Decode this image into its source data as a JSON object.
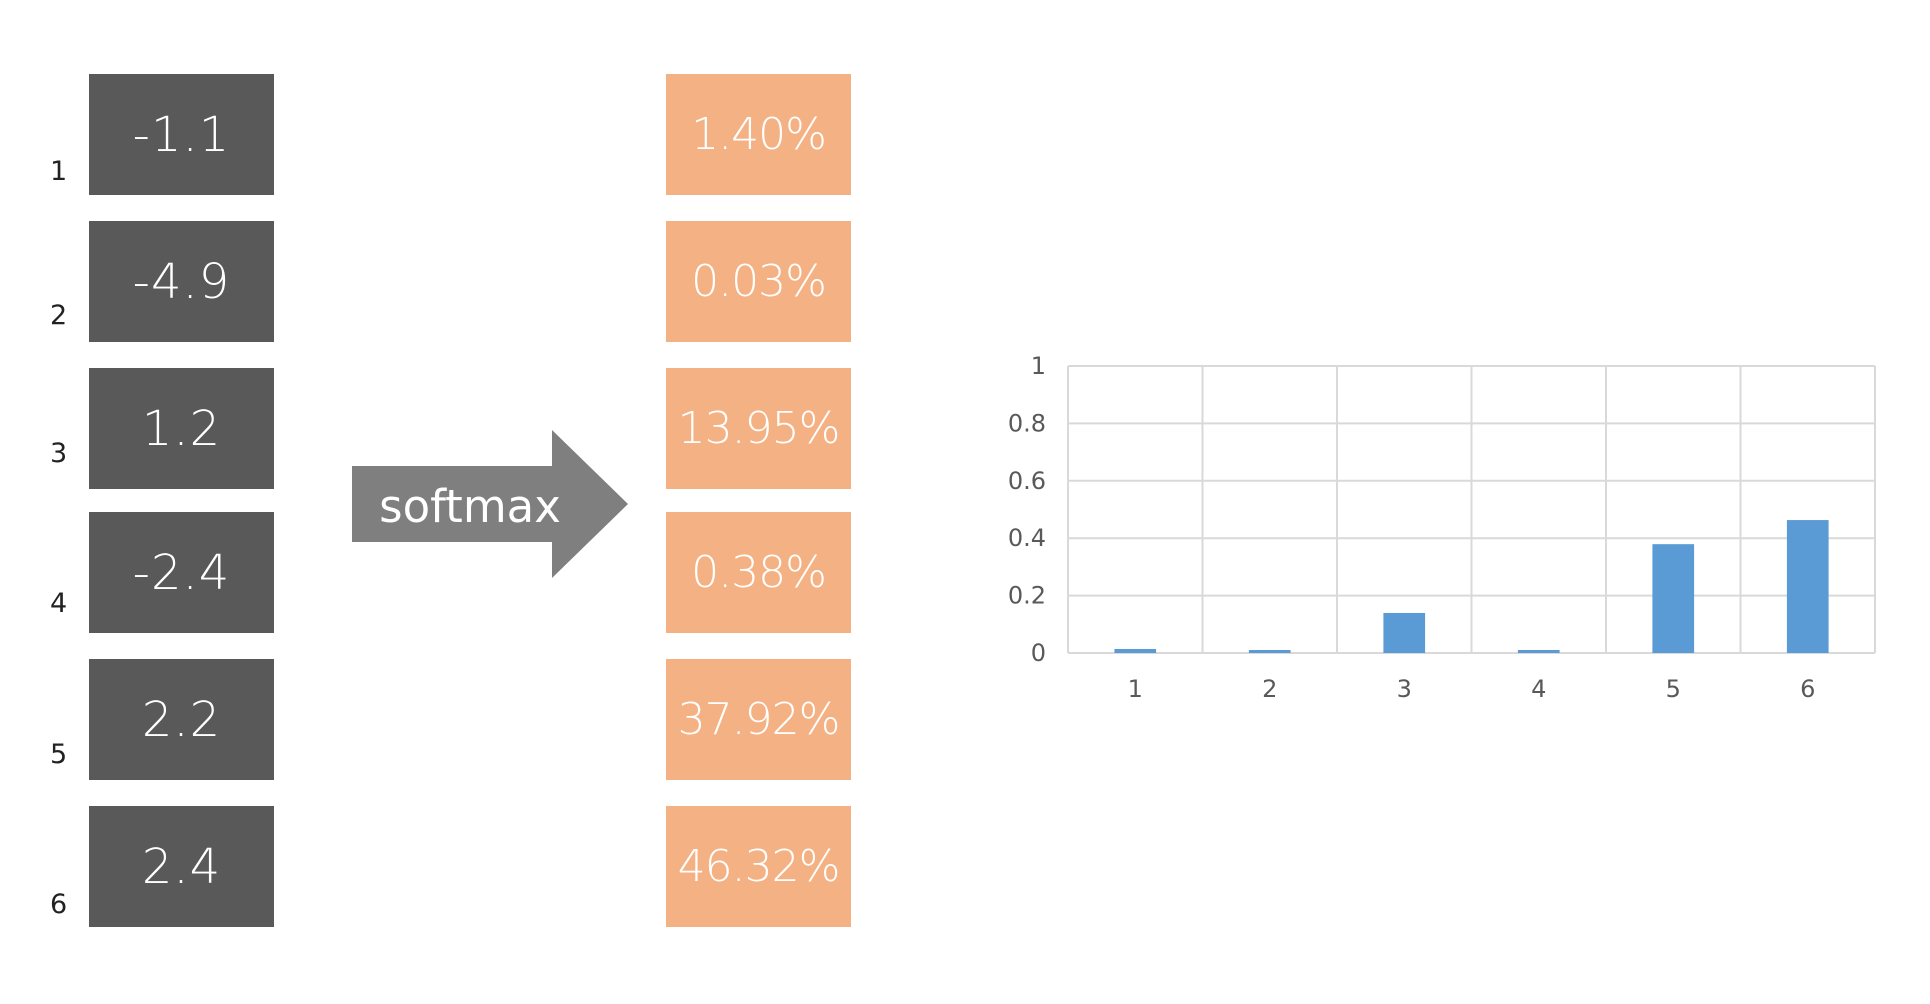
{
  "rows": [
    {
      "index": "1",
      "logit": "-1.1",
      "probability": "1.40%"
    },
    {
      "index": "2",
      "logit": "-4.9",
      "probability": "0.03%"
    },
    {
      "index": "3",
      "logit": "1.2",
      "probability": "13.95%"
    },
    {
      "index": "4",
      "logit": "-2.4",
      "probability": "0.38%"
    },
    {
      "index": "5",
      "logit": "2.2",
      "probability": "37.92%"
    },
    {
      "index": "6",
      "logit": "2.4",
      "probability": "46.32%"
    }
  ],
  "arrow": {
    "label": "softmax"
  },
  "colors": {
    "logit_box": "#595959",
    "prob_box": "#f4b183",
    "arrow": "#7f7f7f",
    "bar": "#5b9bd5",
    "grid": "#d9d9d9"
  },
  "chart_data": {
    "type": "bar",
    "categories": [
      "1",
      "2",
      "3",
      "4",
      "5",
      "6"
    ],
    "values": [
      0.014,
      0.0003,
      0.1395,
      0.0038,
      0.3792,
      0.4632
    ],
    "title": "",
    "xlabel": "",
    "ylabel": "",
    "ylim": [
      0,
      1
    ],
    "yticks": [
      "0",
      "0.2",
      "0.4",
      "0.6",
      "0.8",
      "1"
    ],
    "grid": true,
    "legend": "none"
  }
}
